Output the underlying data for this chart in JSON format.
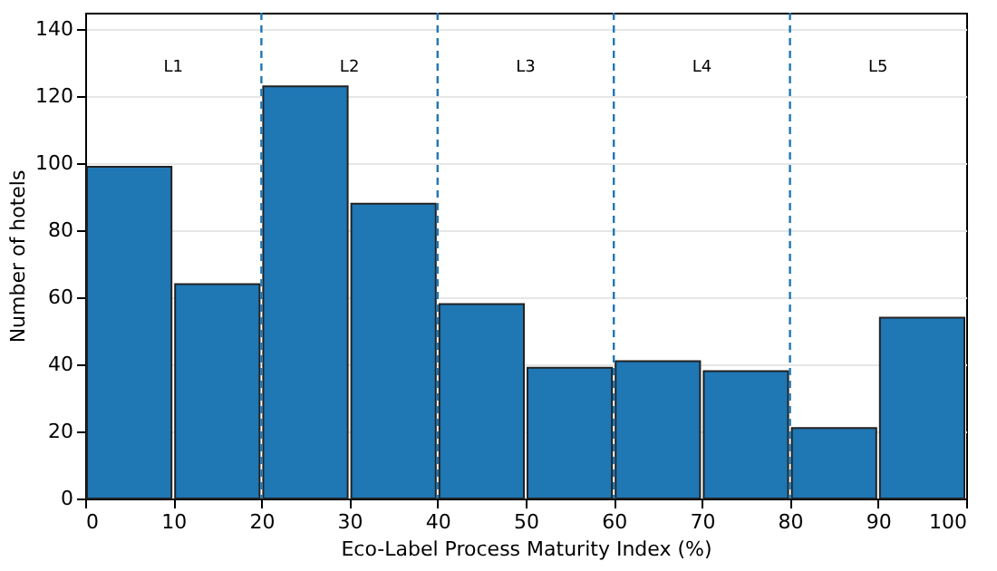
{
  "chart_data": {
    "type": "histogram",
    "xlabel": "Eco-Label Process Maturity Index (%)",
    "ylabel": "Number of hotels",
    "bins": [
      0,
      10,
      20,
      30,
      40,
      50,
      60,
      70,
      80,
      90,
      100
    ],
    "values": [
      99,
      64,
      123,
      88,
      58,
      39,
      41,
      38,
      21,
      54
    ],
    "color": "#1f77b4",
    "xlim": [
      0,
      100
    ],
    "xticks": [
      0,
      10,
      20,
      30,
      40,
      50,
      60,
      70,
      80,
      90,
      100
    ],
    "ylim": [
      0,
      145
    ],
    "yticks": [
      0,
      20,
      40,
      60,
      80,
      100,
      120,
      140
    ],
    "grid": "y",
    "ref_lines": [
      {
        "axis": "x",
        "value": 20,
        "color": "#1f77b4",
        "line_style": "dashed"
      },
      {
        "axis": "x",
        "value": 40,
        "color": "#1f77b4",
        "line_style": "dashed"
      },
      {
        "axis": "x",
        "value": 60,
        "color": "#1f77b4",
        "line_style": "dashed"
      },
      {
        "axis": "x",
        "value": 80,
        "color": "#1f77b4",
        "line_style": "dashed"
      }
    ],
    "annotations": [
      "L1",
      "L2",
      "L3",
      "L4",
      "L5"
    ]
  }
}
